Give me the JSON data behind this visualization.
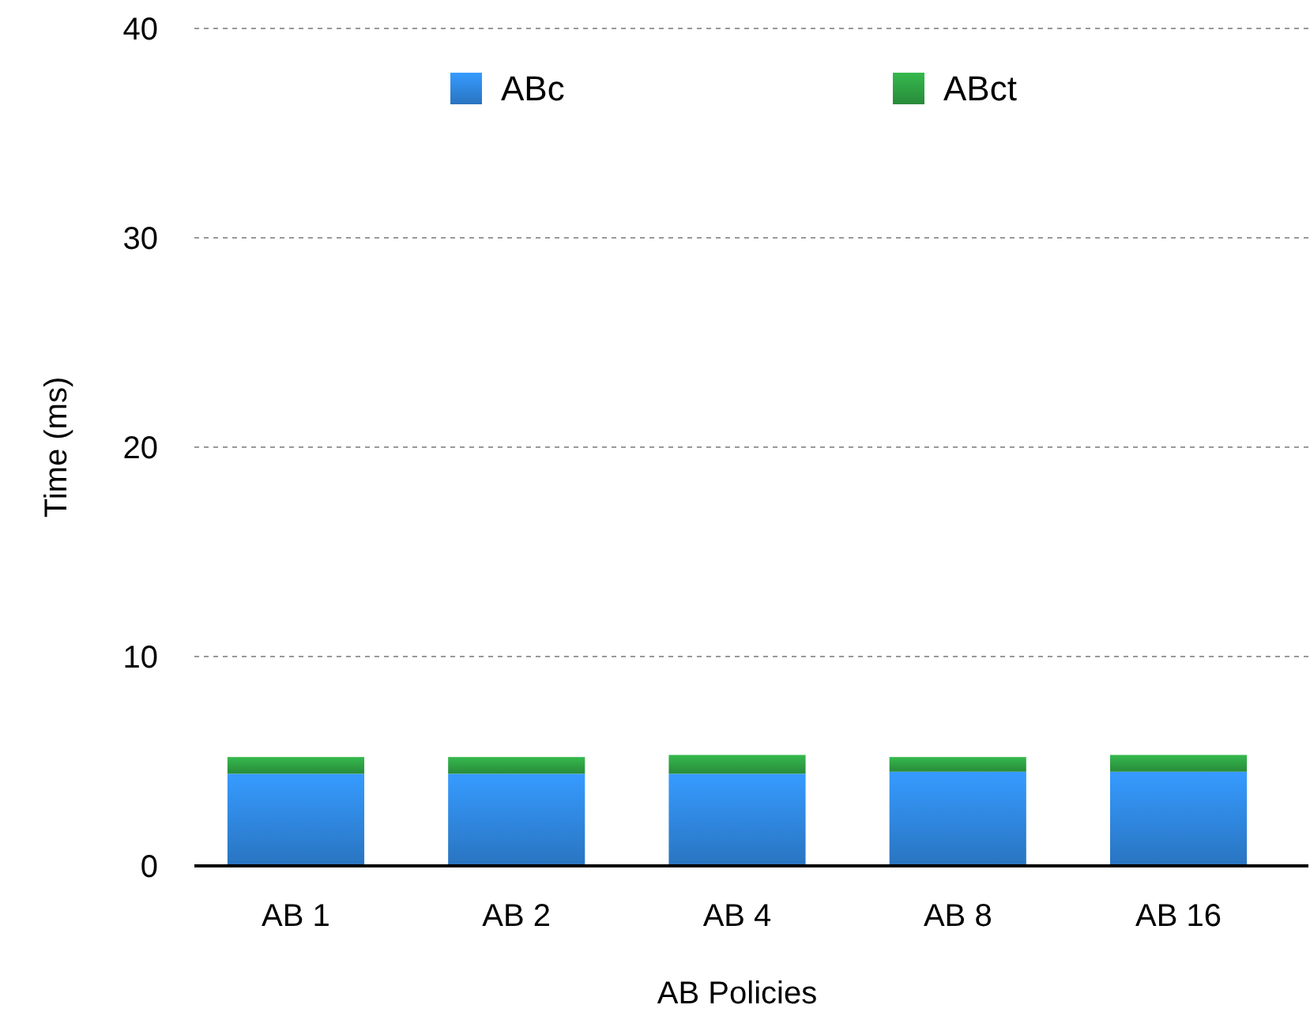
{
  "chart_data": {
    "type": "bar",
    "stacked": true,
    "xlabel": "AB Policies",
    "ylabel": "Time (ms)",
    "categories": [
      "AB 1",
      "AB 2",
      "AB 4",
      "AB 8",
      "AB 16"
    ],
    "series": [
      {
        "name": "ABc",
        "color": "#2f86de",
        "values": [
          4.4,
          4.4,
          4.4,
          4.5,
          4.5
        ]
      },
      {
        "name": "ABct",
        "color": "#2ea043",
        "values": [
          0.8,
          0.8,
          0.9,
          0.7,
          0.8
        ]
      }
    ],
    "ylim": [
      0,
      40
    ],
    "yticks": [
      0,
      10,
      20,
      30,
      40
    ],
    "grid": "y",
    "legend": "top"
  }
}
